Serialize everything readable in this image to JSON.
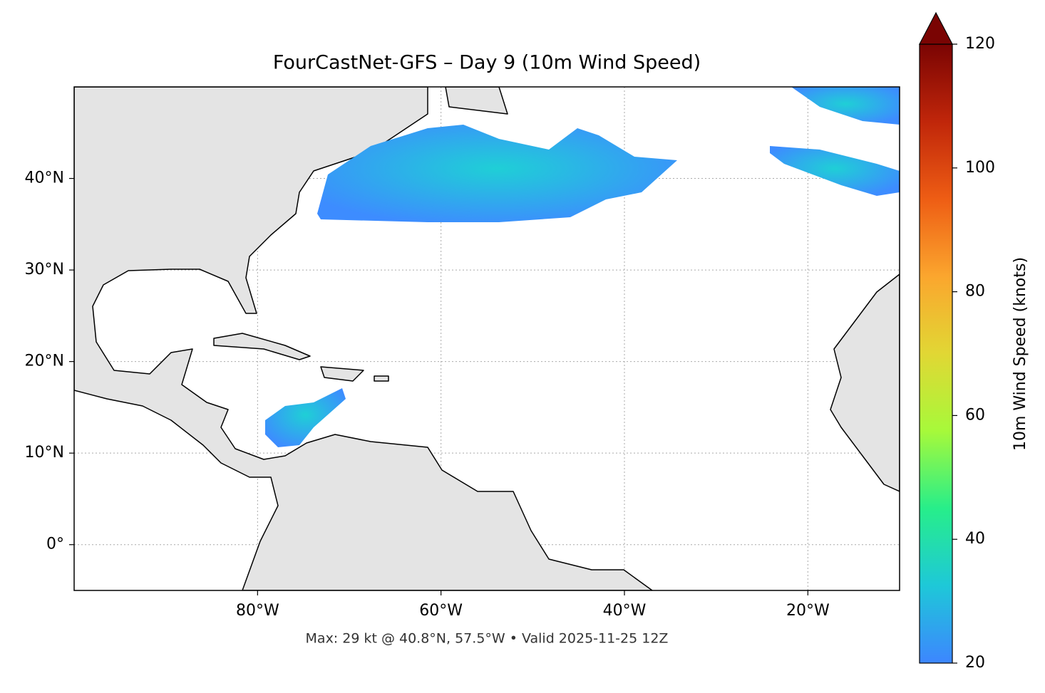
{
  "chart_data": {
    "type": "map",
    "title": "FourCastNet-GFS – Day 9 (10m Wind Speed)",
    "footer": "Max: 29 kt @ 40.8°N, 57.5°W • Valid 2025-11-25 12Z",
    "xlim": [
      -100,
      -10
    ],
    "ylim": [
      -5,
      50
    ],
    "xticks": [
      {
        "value": -80,
        "label": "80°W"
      },
      {
        "value": -60,
        "label": "60°W"
      },
      {
        "value": -40,
        "label": "40°W"
      },
      {
        "value": -20,
        "label": "20°W"
      }
    ],
    "yticks": [
      {
        "value": 0,
        "label": "0°"
      },
      {
        "value": 10,
        "label": "10°N"
      },
      {
        "value": 20,
        "label": "20°N"
      },
      {
        "value": 30,
        "label": "30°N"
      },
      {
        "value": 40,
        "label": "40°N"
      }
    ],
    "grid": true,
    "colorbar": {
      "label": "10m Wind Speed (knots)",
      "lim": [
        20,
        120
      ],
      "ticks": [
        20,
        40,
        60,
        80,
        100,
        120
      ],
      "colors": [
        "#3d86ff",
        "#1ec8d8",
        "#27ee8a",
        "#a7f93a",
        "#e1d734",
        "#fba62e",
        "#ee5d14",
        "#c0260a",
        "#7a0403"
      ]
    }
  }
}
